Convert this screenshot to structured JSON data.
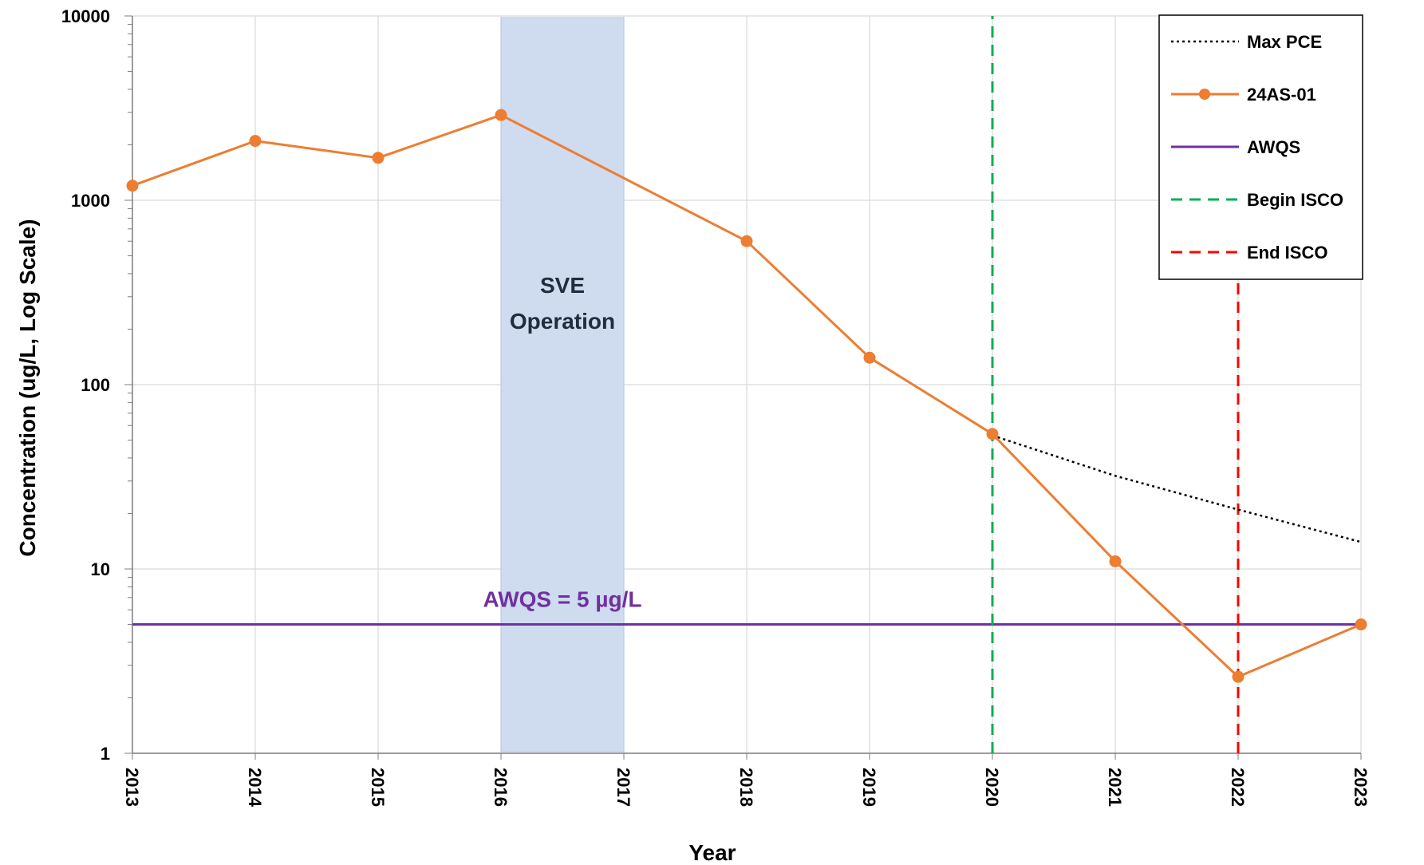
{
  "chart_data": {
    "type": "line",
    "xlabel": "Year",
    "ylabel": "Concentration (ug/L, Log Scale)",
    "x_ticks": [
      2013,
      2014,
      2015,
      2016,
      2017,
      2018,
      2019,
      2020,
      2021,
      2022,
      2023
    ],
    "xlim": [
      2013,
      2023
    ],
    "y_scale": "log",
    "ylim": [
      1,
      10000
    ],
    "y_ticks": [
      1,
      10,
      100,
      1000,
      10000
    ],
    "grid": true,
    "legend_position": "top-right",
    "series": [
      {
        "name": "Max PCE",
        "style": "dotted",
        "color": "#000000",
        "x": [
          2020,
          2021,
          2022,
          2023
        ],
        "y": [
          53,
          32,
          21,
          14
        ]
      },
      {
        "name": "24AS-01",
        "style": "solid-markers",
        "color": "#ED7D31",
        "x": [
          2013,
          2014,
          2015,
          2016,
          2018,
          2019,
          2020,
          2021,
          2022,
          2023
        ],
        "y": [
          1200,
          2100,
          1700,
          2900,
          600,
          140,
          54,
          11,
          2.6,
          5
        ]
      },
      {
        "name": "AWQS",
        "style": "solid",
        "color": "#7030A0",
        "x": [
          2013,
          2023
        ],
        "y": [
          5,
          5
        ]
      },
      {
        "name": "Begin ISCO",
        "style": "dashed",
        "color": "#00B050",
        "x": [
          2020,
          2020
        ],
        "y": [
          1,
          10000
        ]
      },
      {
        "name": "End ISCO",
        "style": "dashed",
        "color": "#FF0000",
        "x": [
          2022,
          2022
        ],
        "y": [
          1,
          10000
        ]
      }
    ],
    "shaded_region": {
      "x_start": 2016,
      "x_end": 2017,
      "label_line1": "SVE",
      "label_line2": "Operation",
      "color": "#CFDBEF",
      "label_color": "#1F2D3D"
    },
    "annotations": [
      {
        "text": "AWQS = 5 µg/L",
        "x": 2016.5,
        "y": 5,
        "color": "#7030A0"
      }
    ]
  }
}
